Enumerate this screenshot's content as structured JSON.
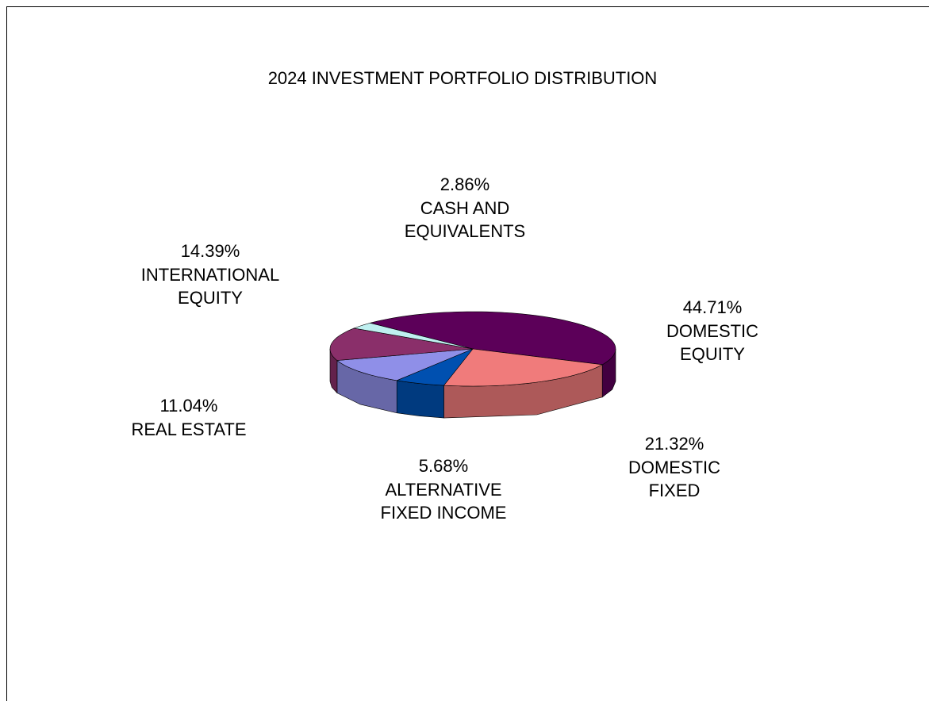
{
  "chart_data": {
    "type": "pie",
    "title": "2024 INVESTMENT  PORTFOLIO DISTRIBUTION",
    "categories": [
      "DOMESTIC\nEQUITY",
      "DOMESTIC\nFIXED",
      "ALTERNATIVE\nFIXED INCOME",
      "REAL ESTATE",
      "INTERNATIONAL\nEQUITY",
      "CASH AND\nEQUIVALENTS"
    ],
    "values": [
      44.71,
      21.32,
      5.68,
      11.04,
      14.39,
      2.86
    ],
    "value_labels": [
      "44.71%",
      "21.32%",
      "5.68%",
      "11.04%",
      "14.39%",
      "2.86%"
    ],
    "colors": [
      "#5c0059",
      "#f07b7b",
      "#0050b0",
      "#8f8fe8",
      "#8a2f6a",
      "#bff0f0"
    ]
  }
}
